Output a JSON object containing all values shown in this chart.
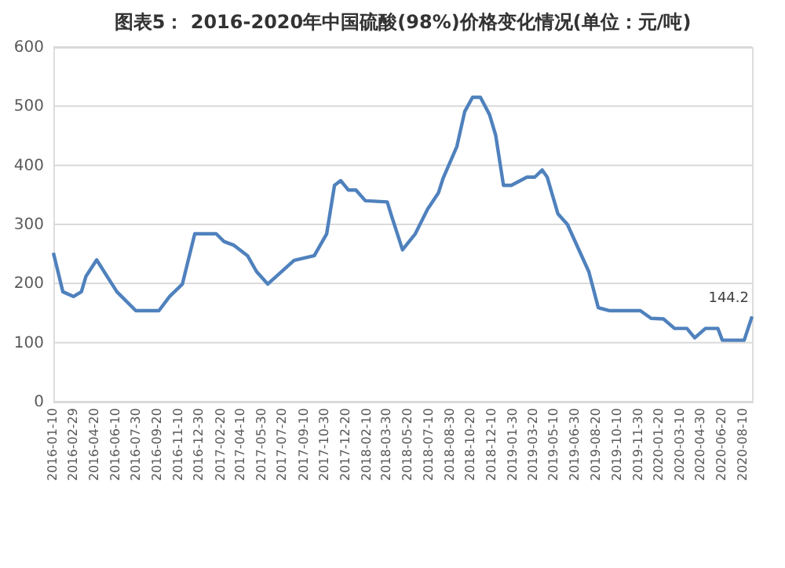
{
  "chart_data": {
    "type": "line",
    "title": "图表5： 2016-2020年中国硫酸(98%)价格变化情况(单位：元/吨)",
    "x": [
      "2016-01-10",
      "2016-02-02",
      "2016-02-28",
      "2016-03-18",
      "2016-03-29",
      "2016-04-24",
      "2016-06-12",
      "2016-07-28",
      "2016-09-22",
      "2016-10-18",
      "2016-11-18",
      "2016-12-18",
      "2017-02-08",
      "2017-02-27",
      "2017-03-22",
      "2017-04-25",
      "2017-05-17",
      "2017-06-13",
      "2017-08-16",
      "2017-10-04",
      "2017-11-03",
      "2017-11-22",
      "2017-12-07",
      "2017-12-26",
      "2018-01-13",
      "2018-02-05",
      "2018-03-30",
      "2018-04-10",
      "2018-05-06",
      "2018-06-06",
      "2018-07-06",
      "2018-08-01",
      "2018-08-12",
      "2018-09-15",
      "2018-10-04",
      "2018-10-23",
      "2018-11-11",
      "2018-12-03",
      "2018-12-18",
      "2019-01-06",
      "2019-01-25",
      "2019-03-04",
      "2019-03-23",
      "2019-04-10",
      "2019-04-22",
      "2019-05-18",
      "2019-06-10",
      "2019-08-01",
      "2019-08-24",
      "2019-09-19",
      "2019-12-04",
      "2019-12-30",
      "2020-01-29",
      "2020-02-25",
      "2020-03-26",
      "2020-04-14",
      "2020-05-10",
      "2020-06-09",
      "2020-06-20",
      "2020-08-12",
      "2020-08-31"
    ],
    "series": [
      {
        "color": "#4f81bd",
        "values": [
          252,
          186,
          178,
          186,
          212,
          240,
          186,
          154,
          154,
          178,
          199,
          284,
          284,
          271,
          265,
          247,
          220,
          199,
          239,
          247,
          284,
          366,
          374,
          358,
          358,
          340,
          338,
          313,
          257,
          284,
          326,
          353,
          377,
          432,
          491,
          515,
          515,
          486,
          451,
          366,
          366,
          380,
          380,
          392,
          380,
          318,
          300,
          220,
          159,
          154,
          154,
          141,
          140,
          124,
          124,
          108,
          124,
          124,
          104,
          104,
          144.2
        ]
      }
    ],
    "xlim": [
      "2016-01-10",
      "2020-08-31"
    ],
    "xticks": [
      "2016-01-10",
      "2016-02-29",
      "2016-04-20",
      "2016-06-10",
      "2016-07-30",
      "2016-09-20",
      "2016-11-10",
      "2016-12-30",
      "2017-02-20",
      "2017-04-10",
      "2017-05-30",
      "2017-07-20",
      "2017-09-10",
      "2017-10-30",
      "2017-12-20",
      "2018-02-10",
      "2018-03-30",
      "2018-05-20",
      "2018-07-10",
      "2018-08-30",
      "2018-10-20",
      "2018-12-10",
      "2019-01-30",
      "2019-03-20",
      "2019-05-10",
      "2019-06-30",
      "2019-08-20",
      "2019-10-10",
      "2019-11-30",
      "2020-01-20",
      "2020-03-10",
      "2020-04-30",
      "2020-06-20",
      "2020-08-10"
    ],
    "ylim": [
      0,
      600
    ],
    "yticks": [
      0,
      100,
      200,
      300,
      400,
      500,
      600
    ],
    "grid": "y",
    "marker": "none",
    "line_style": "solid",
    "annotations": [
      {
        "text": "144.2",
        "x": "2020-08-31",
        "y": 144.2
      }
    ]
  }
}
